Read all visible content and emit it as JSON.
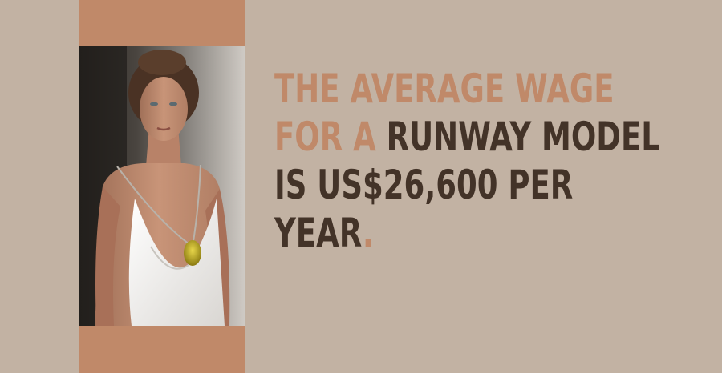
{
  "headline": {
    "line1": {
      "accent": "THE AVERAGE WAGE"
    },
    "line2": {
      "accent": "FOR A ",
      "dark": "RUNWAY MODEL"
    },
    "line3": {
      "dark": "IS US$26,600 PER"
    },
    "line4": {
      "dark": "YEAR",
      "period": "."
    }
  },
  "colors": {
    "background": "#c2b2a3",
    "accent": "#c08969",
    "dark_text": "#433328"
  }
}
